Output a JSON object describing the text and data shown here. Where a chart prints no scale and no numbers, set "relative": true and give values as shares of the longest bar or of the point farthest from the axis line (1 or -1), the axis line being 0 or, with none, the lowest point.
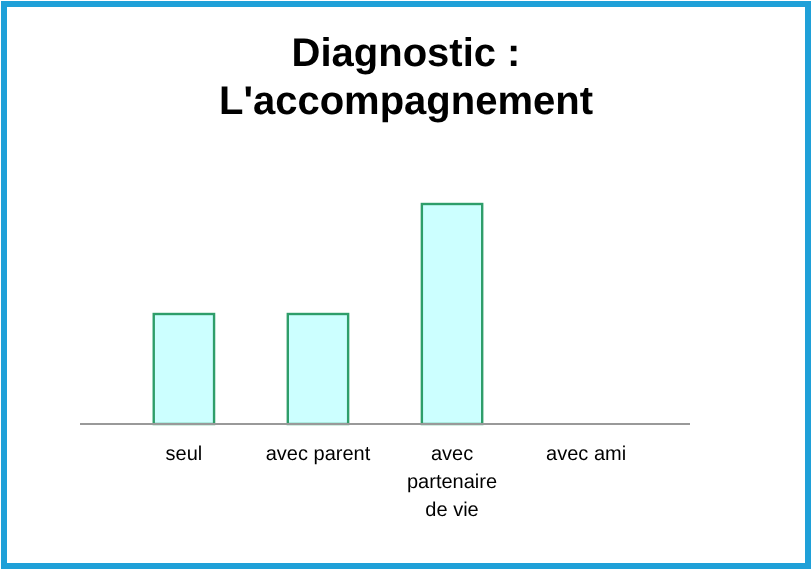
{
  "chart_data": {
    "type": "bar",
    "title": "Diagnostic : L'accompagnement",
    "categories": [
      "seul",
      "avec parent",
      "avec partenaire de vie",
      "avec ami"
    ],
    "values": [
      0.5,
      0.5,
      1,
      0
    ],
    "color": "#ccffff",
    "relative": true
  }
}
